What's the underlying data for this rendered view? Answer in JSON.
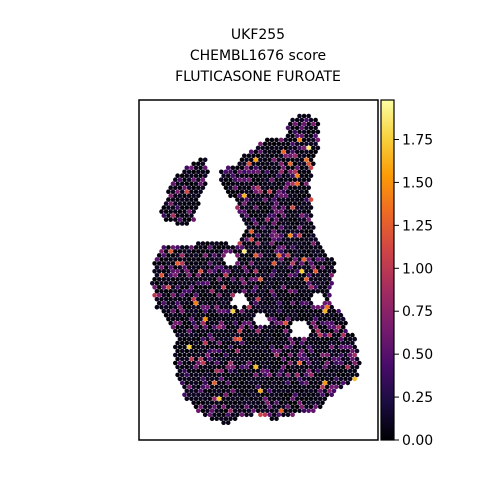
{
  "chart_data": {
    "type": "scatter",
    "title": [
      "UKF255",
      "CHEMBL1676 score",
      "FLUTICASONE FUROATE"
    ],
    "xlabel": "",
    "ylabel": "",
    "grid": false,
    "legend": "none",
    "colorbar": {
      "range": [
        0.0,
        1.98
      ],
      "ticks": [
        0.0,
        0.25,
        0.5,
        0.75,
        1.0,
        1.25,
        1.5,
        1.75
      ],
      "tick_labels": [
        "0.00",
        "0.25",
        "0.50",
        "0.75",
        "1.00",
        "1.25",
        "1.50",
        "1.75"
      ],
      "colormap": "inferno",
      "stops": [
        "#000004",
        "#1b0c41",
        "#4a0c6b",
        "#781c6d",
        "#a52c60",
        "#cf4446",
        "#ed6925",
        "#fb9b06",
        "#f7d13d",
        "#fcffa4"
      ]
    },
    "spot_color_default": "#000004"
  }
}
